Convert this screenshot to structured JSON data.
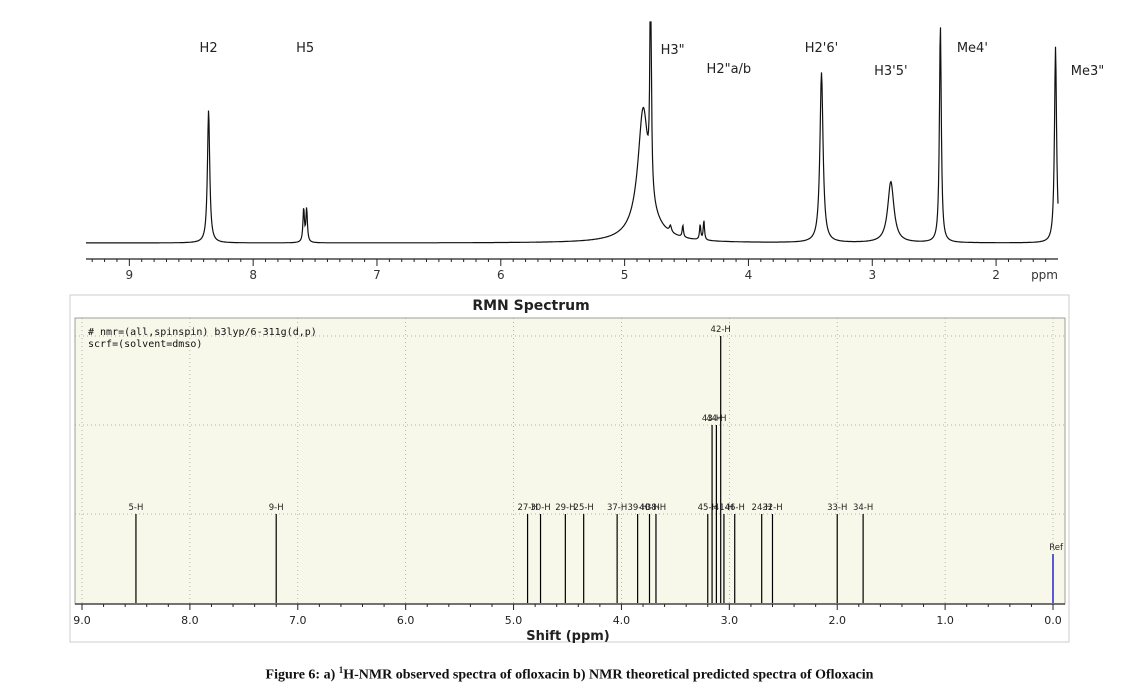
{
  "caption": {
    "prefix": "Figure 6: a) ",
    "sup": "1",
    "rest": "H-NMR observed spectra of ofloxacin b) NMR theoretical predicted spectra of Ofloxacin"
  },
  "colors": {
    "panel_b_bg": "#f8f8ea",
    "ref_line": "#3333cc",
    "axis": "#222222"
  },
  "chart_data": [
    {
      "type": "line",
      "xlabel": "ppm",
      "xlim": [
        9.35,
        1.5
      ],
      "x_reversed": true,
      "xticks": [
        "9",
        "8",
        "7",
        "6",
        "5",
        "4",
        "3",
        "2"
      ],
      "peaks": [
        {
          "label": "H2",
          "x": 8.36,
          "height": 0.61
        },
        {
          "label": "H5",
          "x": 7.58,
          "height": 0.28
        },
        {
          "label": "H3\"",
          "x": 4.79,
          "height": 1.1
        },
        {
          "label": "H2\"a/b",
          "x": 4.36,
          "height": 0.1
        },
        {
          "label": "H2'6'",
          "x": 3.41,
          "height": 0.78
        },
        {
          "label": "H3'5'",
          "x": 2.85,
          "height": 0.28
        },
        {
          "label": "Me4'",
          "x": 2.45,
          "height": 1.0
        },
        {
          "label": "Me3\"",
          "x": 1.52,
          "height": 0.9
        }
      ]
    },
    {
      "type": "bar",
      "title": "RMN Spectrum",
      "xlabel": "Shift (ppm)",
      "xlim": [
        9.0,
        0.0
      ],
      "x_reversed": true,
      "xticks": [
        "9.0",
        "8.0",
        "7.0",
        "6.0",
        "5.0",
        "4.0",
        "3.0",
        "2.0",
        "1.0",
        "0.0"
      ],
      "annotation": [
        "# nmr=(all,spinspin) b3lyp/6-311g(d,p)",
        "scrf=(solvent=dmso)"
      ],
      "peaks": [
        {
          "label": "5-H",
          "x": 8.5,
          "intensity": 1
        },
        {
          "label": "9-H",
          "x": 7.2,
          "intensity": 1
        },
        {
          "label": "27-H",
          "x": 4.87,
          "intensity": 1
        },
        {
          "label": "30-H",
          "x": 4.75,
          "intensity": 1
        },
        {
          "label": "29-H",
          "x": 4.52,
          "intensity": 1
        },
        {
          "label": "25-H",
          "x": 4.35,
          "intensity": 1
        },
        {
          "label": "37-H",
          "x": 4.04,
          "intensity": 1
        },
        {
          "label": "39-H",
          "x": 3.85,
          "intensity": 1
        },
        {
          "label": "40-H",
          "x": 3.74,
          "intensity": 1
        },
        {
          "label": "38-H",
          "x": 3.68,
          "intensity": 1
        },
        {
          "label": "45-H",
          "x": 3.2,
          "intensity": 1
        },
        {
          "label": "43-H",
          "x": 3.16,
          "intensity": 2
        },
        {
          "label": "44-H",
          "x": 3.12,
          "intensity": 2
        },
        {
          "label": "42-H",
          "x": 3.08,
          "intensity": 3
        },
        {
          "label": "41-H",
          "x": 3.05,
          "intensity": 1
        },
        {
          "label": "46-H",
          "x": 2.95,
          "intensity": 1
        },
        {
          "label": "24-H",
          "x": 2.7,
          "intensity": 1
        },
        {
          "label": "32-H",
          "x": 2.6,
          "intensity": 1
        },
        {
          "label": "33-H",
          "x": 2.0,
          "intensity": 1
        },
        {
          "label": "34-H",
          "x": 1.76,
          "intensity": 1
        },
        {
          "label": "Ref",
          "x": 0.0,
          "intensity": 0.55
        }
      ]
    }
  ]
}
